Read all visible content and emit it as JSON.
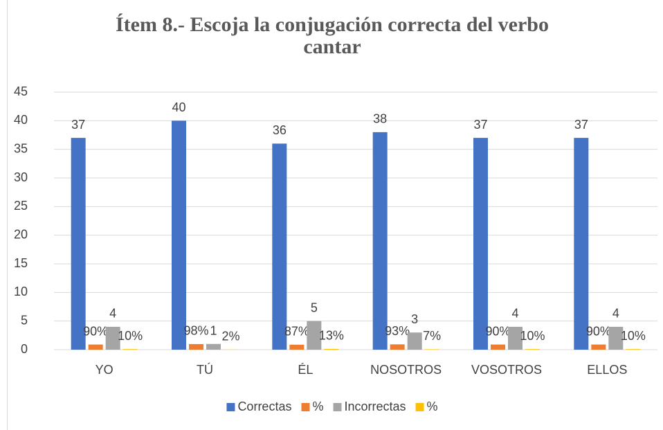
{
  "chart_data": {
    "type": "bar",
    "title": [
      "Ítem 8.- Escoja la conjugación correcta del verbo",
      "cantar"
    ],
    "categories": [
      "YO",
      "TÚ",
      "ÉL",
      "NOSOTROS",
      "VOSOTROS",
      "ELLOS"
    ],
    "series": [
      {
        "name": "Correctas",
        "color": "#4472c4",
        "values": [
          37,
          40,
          36,
          38,
          37,
          37
        ]
      },
      {
        "name": "%",
        "color": "#ed7d31",
        "values": [
          0.9,
          0.98,
          0.87,
          0.93,
          0.9,
          0.9
        ],
        "value_labels": [
          "90%",
          "98%",
          "87%",
          "93%",
          "90%",
          "90%"
        ]
      },
      {
        "name": "Incorrectas",
        "color": "#a5a5a5",
        "values": [
          4,
          1,
          5,
          3,
          4,
          4
        ]
      },
      {
        "name": "%",
        "color": "#ffc000",
        "values": [
          0.1,
          0.02,
          0.13,
          0.07,
          0.1,
          0.1
        ],
        "value_labels": [
          "10%",
          "2%",
          "13%",
          "7%",
          "10%",
          "10%"
        ]
      }
    ],
    "ylim": [
      0,
      45
    ],
    "yticks": [
      0,
      5,
      10,
      15,
      20,
      25,
      30,
      35,
      40,
      45
    ],
    "grid": true,
    "legend": "bottom"
  }
}
